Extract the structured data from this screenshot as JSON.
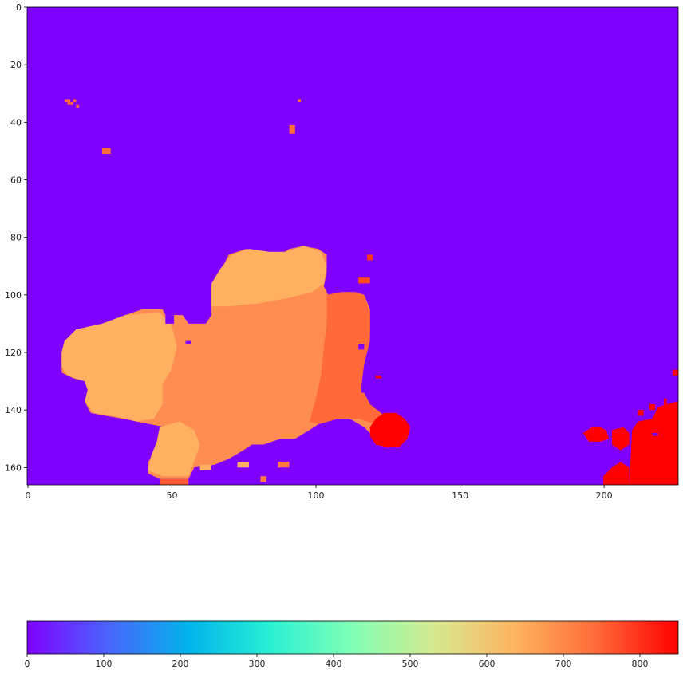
{
  "chart_data": {
    "type": "heatmap",
    "title": "",
    "xlabel": "",
    "ylabel": "",
    "grid": false,
    "colormap": "rainbow",
    "background_value": 0,
    "colors": {
      "background": "#7f00ff",
      "orange_light": "#ffb060",
      "orange_mid": "#ff8c50",
      "orange_red": "#ff6a38",
      "red": "#ff0000"
    },
    "image": {
      "width": 226,
      "height": 166
    },
    "xlim": [
      0,
      226
    ],
    "ylim": [
      166,
      0
    ],
    "x_ticks": [
      0,
      50,
      100,
      150,
      200
    ],
    "x_tick_labels": [
      "0",
      "50",
      "100",
      "150",
      "200"
    ],
    "y_ticks": [
      0,
      20,
      40,
      60,
      80,
      100,
      120,
      140,
      160
    ],
    "y_tick_labels": [
      "0",
      "20",
      "40",
      "60",
      "80",
      "100",
      "120",
      "140",
      "160"
    ],
    "colorbar": {
      "orientation": "horizontal",
      "range": [
        0,
        850
      ],
      "ticks": [
        0,
        100,
        200,
        300,
        400,
        500,
        600,
        700,
        800
      ],
      "tick_labels": [
        "0",
        "100",
        "200",
        "300",
        "400",
        "500",
        "600",
        "700",
        "800"
      ],
      "stops": [
        "#7f00ff",
        "#4a65fc",
        "#00b5eb",
        "#2bf0d3",
        "#80ffb4",
        "#d5e98f",
        "#ffb360",
        "#ff6a38",
        "#ff0000"
      ]
    },
    "regions": [
      {
        "label": "main-blob",
        "value": 690,
        "color": "#ff8c50",
        "points": [
          [
            12,
            120
          ],
          [
            13,
            116
          ],
          [
            17,
            112
          ],
          [
            26,
            110
          ],
          [
            30,
            110
          ],
          [
            34,
            107
          ],
          [
            40,
            105
          ],
          [
            47,
            105
          ],
          [
            48,
            107
          ],
          [
            54,
            107
          ],
          [
            56,
            110
          ],
          [
            62,
            110
          ],
          [
            64,
            107
          ],
          [
            64,
            97
          ],
          [
            67,
            92
          ],
          [
            70,
            86
          ],
          [
            76,
            84
          ],
          [
            80,
            85
          ],
          [
            84,
            85
          ],
          [
            88,
            86
          ],
          [
            91,
            84
          ],
          [
            96,
            83
          ],
          [
            101,
            84
          ],
          [
            104,
            86
          ],
          [
            104,
            92
          ],
          [
            103,
            97
          ],
          [
            105,
            101
          ],
          [
            108,
            100
          ],
          [
            112,
            99
          ],
          [
            117,
            100
          ],
          [
            119,
            105
          ],
          [
            119,
            115
          ],
          [
            116,
            124
          ],
          [
            115,
            132
          ],
          [
            118,
            138
          ],
          [
            124,
            142
          ],
          [
            127,
            147
          ],
          [
            128,
            152
          ],
          [
            125,
            153
          ],
          [
            121,
            151
          ],
          [
            120,
            149
          ],
          [
            117,
            146
          ],
          [
            112,
            143
          ],
          [
            106,
            143
          ],
          [
            101,
            145
          ],
          [
            98,
            147
          ],
          [
            93,
            150
          ],
          [
            88,
            150
          ],
          [
            82,
            152
          ],
          [
            78,
            152
          ],
          [
            75,
            154
          ],
          [
            70,
            157
          ],
          [
            65,
            159
          ],
          [
            58,
            160
          ],
          [
            56,
            164
          ],
          [
            46,
            164
          ],
          [
            42,
            162
          ],
          [
            42,
            158
          ],
          [
            45,
            154
          ],
          [
            46,
            150
          ],
          [
            48,
            146
          ],
          [
            43,
            145
          ],
          [
            38,
            144
          ],
          [
            33,
            143
          ],
          [
            27,
            142
          ],
          [
            22,
            141
          ],
          [
            20,
            137
          ],
          [
            21,
            134
          ],
          [
            22,
            131
          ],
          [
            20,
            130
          ],
          [
            16,
            129
          ],
          [
            12,
            127
          ]
        ]
      },
      {
        "label": "left-lobe",
        "value": 640,
        "color": "#ffb060",
        "points": [
          [
            12,
            120
          ],
          [
            13,
            116
          ],
          [
            17,
            112
          ],
          [
            26,
            110
          ],
          [
            34,
            107
          ],
          [
            46,
            106
          ],
          [
            50,
            110
          ],
          [
            52,
            118
          ],
          [
            50,
            126
          ],
          [
            47,
            131
          ],
          [
            47,
            138
          ],
          [
            44,
            143
          ],
          [
            38,
            144
          ],
          [
            30,
            142
          ],
          [
            23,
            141
          ],
          [
            20,
            137
          ],
          [
            21,
            133
          ],
          [
            20,
            130
          ],
          [
            14,
            128
          ],
          [
            12,
            125
          ]
        ]
      },
      {
        "label": "top-lobe",
        "value": 640,
        "color": "#ffb060",
        "points": [
          [
            64,
            104
          ],
          [
            64,
            96
          ],
          [
            67,
            91
          ],
          [
            71,
            86
          ],
          [
            77,
            84
          ],
          [
            84,
            85
          ],
          [
            90,
            85
          ],
          [
            96,
            83
          ],
          [
            102,
            85
          ],
          [
            104,
            90
          ],
          [
            103,
            96
          ],
          [
            99,
            99
          ],
          [
            91,
            101
          ],
          [
            80,
            103
          ],
          [
            70,
            104
          ]
        ]
      },
      {
        "label": "bottom-lobe",
        "value": 640,
        "color": "#ffb060",
        "points": [
          [
            46,
            146
          ],
          [
            53,
            144
          ],
          [
            58,
            147
          ],
          [
            60,
            152
          ],
          [
            58,
            158
          ],
          [
            56,
            163
          ],
          [
            47,
            163
          ],
          [
            42,
            161
          ],
          [
            43,
            156
          ],
          [
            45,
            151
          ]
        ]
      },
      {
        "label": "right-edge",
        "value": 760,
        "color": "#ff6a38",
        "points": [
          [
            104,
            100
          ],
          [
            109,
            99
          ],
          [
            114,
            99
          ],
          [
            117,
            100
          ],
          [
            119,
            106
          ],
          [
            119,
            116
          ],
          [
            117,
            124
          ],
          [
            116,
            132
          ],
          [
            119,
            138
          ],
          [
            124,
            142
          ],
          [
            126,
            146
          ],
          [
            121,
            145
          ],
          [
            115,
            143
          ],
          [
            108,
            143
          ],
          [
            101,
            145
          ],
          [
            98,
            144
          ],
          [
            100,
            137
          ],
          [
            102,
            128
          ],
          [
            103,
            118
          ],
          [
            104,
            110
          ]
        ]
      },
      {
        "label": "right-spot",
        "value": 850,
        "color": "#ff0000",
        "points": [
          [
            121,
            143
          ],
          [
            124,
            141
          ],
          [
            128,
            141
          ],
          [
            131,
            143
          ],
          [
            133,
            146
          ],
          [
            132,
            150
          ],
          [
            129,
            153
          ],
          [
            125,
            153
          ],
          [
            121,
            152
          ],
          [
            119,
            149
          ],
          [
            119,
            146
          ]
        ]
      },
      {
        "label": "bottom-right-region",
        "value": 850,
        "color": "#ff0000",
        "points": [
          [
            209,
            166
          ],
          [
            210,
            147
          ],
          [
            212,
            144
          ],
          [
            217,
            143
          ],
          [
            219,
            139
          ],
          [
            222,
            138
          ],
          [
            226,
            137
          ],
          [
            226,
            166
          ]
        ]
      },
      {
        "label": "bottom-right-patch-1",
        "value": 850,
        "color": "#ff0000",
        "points": [
          [
            193,
            148
          ],
          [
            196,
            146
          ],
          [
            199,
            146
          ],
          [
            201,
            147
          ],
          [
            202,
            150
          ],
          [
            199,
            151
          ],
          [
            195,
            151
          ]
        ]
      },
      {
        "label": "bottom-right-patch-2",
        "value": 850,
        "color": "#ff0000",
        "points": [
          [
            203,
            147
          ],
          [
            207,
            146
          ],
          [
            209,
            148
          ],
          [
            209,
            152
          ],
          [
            206,
            154
          ],
          [
            203,
            152
          ]
        ]
      },
      {
        "label": "bottom-right-patch-3",
        "value": 850,
        "color": "#ff0000",
        "points": [
          [
            200,
            163
          ],
          [
            203,
            160
          ],
          [
            206,
            158
          ],
          [
            209,
            160
          ],
          [
            209,
            166
          ],
          [
            200,
            166
          ]
        ]
      }
    ],
    "specks": [
      {
        "x": 13,
        "y": 32,
        "w": 2,
        "h": 1,
        "value": 740
      },
      {
        "x": 14,
        "y": 33,
        "w": 2,
        "h": 1,
        "value": 740
      },
      {
        "x": 16,
        "y": 32,
        "w": 1,
        "h": 1,
        "value": 740
      },
      {
        "x": 17,
        "y": 34,
        "w": 1,
        "h": 1,
        "value": 740
      },
      {
        "x": 26,
        "y": 49,
        "w": 3,
        "h": 1,
        "value": 740
      },
      {
        "x": 26,
        "y": 50,
        "w": 3,
        "h": 1,
        "value": 740
      },
      {
        "x": 91,
        "y": 41,
        "w": 2,
        "h": 3,
        "value": 740
      },
      {
        "x": 94,
        "y": 32,
        "w": 1,
        "h": 1,
        "value": 740
      },
      {
        "x": 118,
        "y": 86,
        "w": 2,
        "h": 2,
        "value": 800
      },
      {
        "x": 115,
        "y": 94,
        "w": 4,
        "h": 2,
        "value": 780
      },
      {
        "x": 73,
        "y": 158,
        "w": 4,
        "h": 2,
        "value": 640
      },
      {
        "x": 81,
        "y": 163,
        "w": 2,
        "h": 2,
        "value": 720
      },
      {
        "x": 87,
        "y": 158,
        "w": 4,
        "h": 2,
        "value": 720
      },
      {
        "x": 60,
        "y": 159,
        "w": 4,
        "h": 2,
        "value": 640
      },
      {
        "x": 46,
        "y": 164,
        "w": 10,
        "h": 2,
        "value": 760
      },
      {
        "x": 121,
        "y": 128,
        "w": 2,
        "h": 1,
        "value": 850
      },
      {
        "x": 216,
        "y": 138,
        "w": 2,
        "h": 2,
        "value": 850
      },
      {
        "x": 221,
        "y": 136,
        "w": 1,
        "h": 3,
        "value": 850
      },
      {
        "x": 224,
        "y": 126,
        "w": 2,
        "h": 2,
        "value": 850
      },
      {
        "x": 212,
        "y": 140,
        "w": 2,
        "h": 2,
        "value": 850
      }
    ],
    "holes": [
      {
        "x": 55,
        "y": 116,
        "w": 2,
        "h": 1
      },
      {
        "x": 119,
        "y": 113,
        "w": 2,
        "h": 4
      },
      {
        "x": 115,
        "y": 117,
        "w": 2,
        "h": 2
      },
      {
        "x": 116,
        "y": 132,
        "w": 2,
        "h": 2
      },
      {
        "x": 48,
        "y": 107,
        "w": 3,
        "h": 3
      },
      {
        "x": 217,
        "y": 148,
        "w": 2,
        "h": 1
      }
    ]
  }
}
